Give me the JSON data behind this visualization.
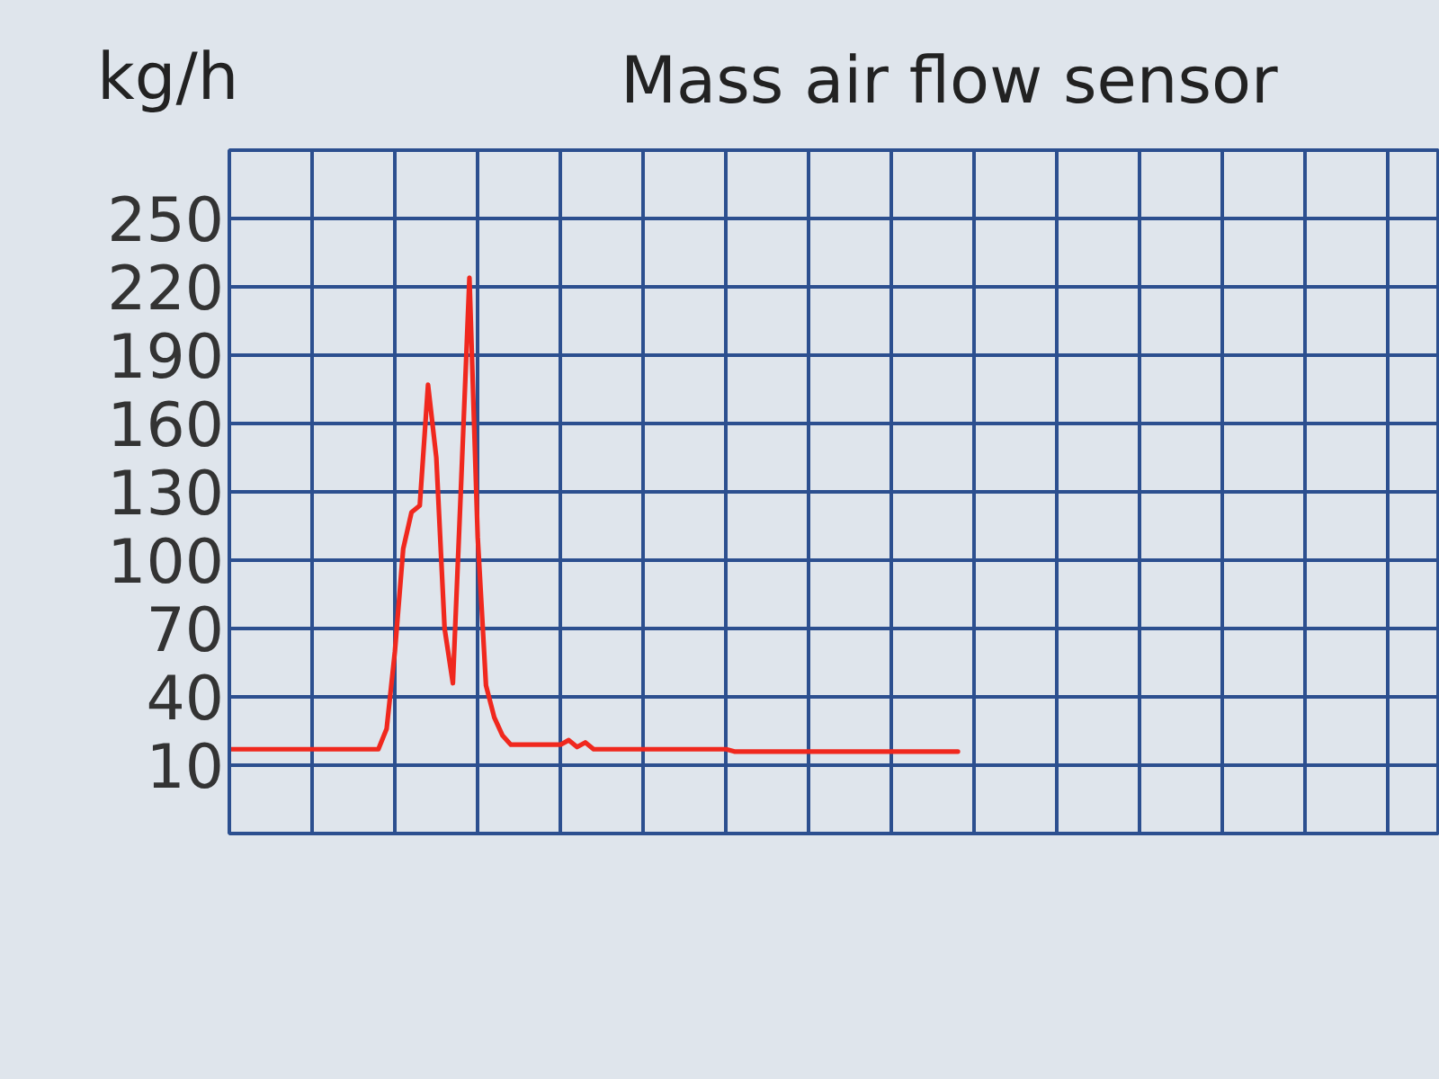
{
  "chart_data": {
    "type": "line",
    "title": "Mass air flow sensor",
    "ylabel": "kg/h",
    "categories": [
      null,
      null,
      null,
      null,
      null,
      null,
      null,
      null,
      null,
      null,
      null,
      null,
      null,
      null,
      null,
      null,
      null,
      null,
      null,
      null,
      null,
      null,
      null,
      null,
      null,
      null,
      null,
      null,
      null,
      null,
      null,
      null,
      null,
      null,
      null,
      null,
      null,
      null,
      null,
      null,
      null,
      null,
      null,
      null,
      null,
      null,
      null,
      null,
      null,
      null,
      null,
      null,
      null,
      null,
      null,
      null,
      null,
      null,
      null,
      null,
      null,
      null,
      null,
      null,
      null,
      null,
      null,
      null,
      null,
      null,
      null,
      null,
      null,
      null,
      null,
      null,
      null,
      null,
      null,
      null,
      null,
      null,
      null,
      null,
      null,
      null,
      null,
      null,
      null,
      null,
      null,
      null,
      null,
      null,
      null,
      null,
      null,
      null,
      null,
      null,
      null,
      null,
      null,
      null,
      null,
      null,
      null,
      null,
      null,
      null,
      null,
      null,
      null,
      null,
      null,
      null,
      null,
      null,
      null,
      null,
      null,
      null,
      null,
      null,
      null,
      null,
      null,
      null,
      null,
      null,
      null,
      null,
      null,
      null,
      null,
      null,
      null,
      null,
      null,
      null,
      null,
      null,
      null,
      null,
      null,
      null,
      null
    ],
    "series": [
      {
        "color": "#f0281e",
        "values": [
          17,
          17,
          17,
          17,
          17,
          17,
          17,
          17,
          17,
          17,
          17,
          17,
          17,
          17,
          17,
          17,
          17,
          17,
          17,
          26,
          60,
          105,
          121,
          124,
          177,
          145,
          70,
          46,
          134,
          224,
          110,
          45,
          31,
          23,
          19,
          19,
          19,
          19,
          19,
          19,
          19,
          21,
          18,
          20,
          17,
          17,
          17,
          17,
          17,
          17,
          17,
          17,
          17,
          17,
          17,
          17,
          17,
          17,
          17,
          17,
          17,
          16,
          16,
          16,
          16,
          16,
          16,
          16,
          16,
          16,
          16,
          16,
          16,
          16,
          16,
          16,
          16,
          16,
          16,
          16,
          16,
          16,
          16,
          16,
          16,
          16,
          16,
          16,
          16,
          null,
          null,
          null,
          null,
          null,
          null,
          null,
          null,
          null,
          null,
          null,
          null,
          null,
          null,
          null,
          null,
          null,
          null,
          null,
          null,
          null,
          null,
          null,
          null,
          null,
          null,
          null,
          null,
          null,
          null,
          null,
          null,
          null,
          null,
          null,
          null,
          null,
          null,
          null,
          null,
          null,
          null,
          null,
          null,
          null,
          null,
          null,
          null,
          null,
          null,
          null,
          null,
          null,
          null,
          null,
          null,
          null,
          null
        ]
      }
    ],
    "ylim": [
      -20,
      280
    ],
    "yticks": [
      10,
      40,
      70,
      100,
      130,
      160,
      190,
      220,
      250
    ],
    "tick_labels": "y",
    "grid": true,
    "line_style": "solid"
  }
}
